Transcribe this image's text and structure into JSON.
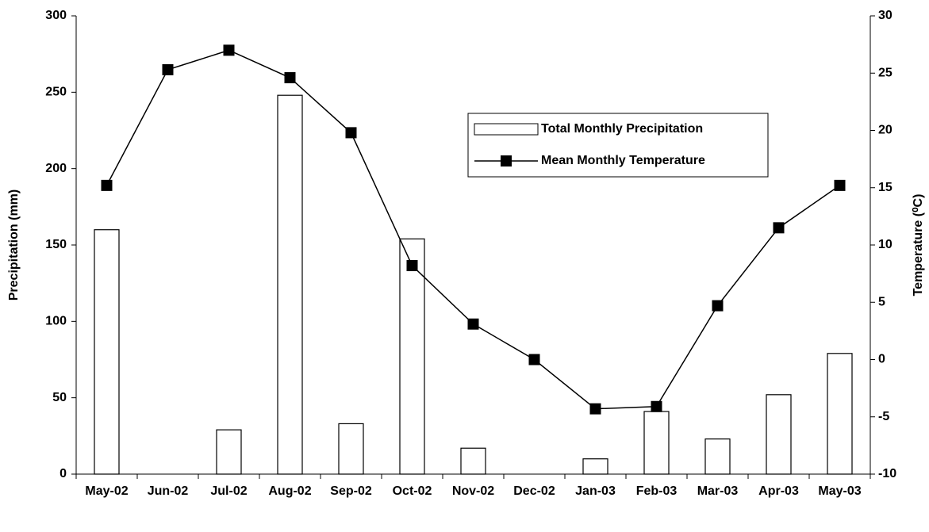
{
  "chart_data": {
    "type": "bar+line",
    "categories": [
      "May-02",
      "Jun-02",
      "Jul-02",
      "Aug-02",
      "Sep-02",
      "Oct-02",
      "Nov-02",
      "Dec-02",
      "Jan-03",
      "Feb-03",
      "Mar-03",
      "Apr-03",
      "May-03"
    ],
    "series": [
      {
        "name": "Total Monthly Precipitation",
        "type": "bar",
        "color": "#ffffff",
        "values": [
          160,
          0,
          29,
          248,
          33,
          154,
          17,
          0,
          10,
          41,
          23,
          52,
          79
        ]
      },
      {
        "name": "Mean Monthly Temperature",
        "type": "line",
        "axis": "y2",
        "color": "#000000",
        "values": [
          15.2,
          25.3,
          27.0,
          24.6,
          19.8,
          8.2,
          3.1,
          0.0,
          -4.3,
          -4.1,
          4.7,
          11.5,
          15.2
        ]
      }
    ],
    "y_label": "Precipitation (mm)",
    "y2_label": "Temperature (⁰C)",
    "ylim": [
      0,
      300
    ],
    "yticks": [
      0,
      50,
      100,
      150,
      200,
      250,
      300
    ],
    "y2lim": [
      -10,
      30
    ],
    "y2ticks": [
      -10,
      -5,
      0,
      5,
      10,
      15,
      20,
      25,
      30
    ]
  }
}
